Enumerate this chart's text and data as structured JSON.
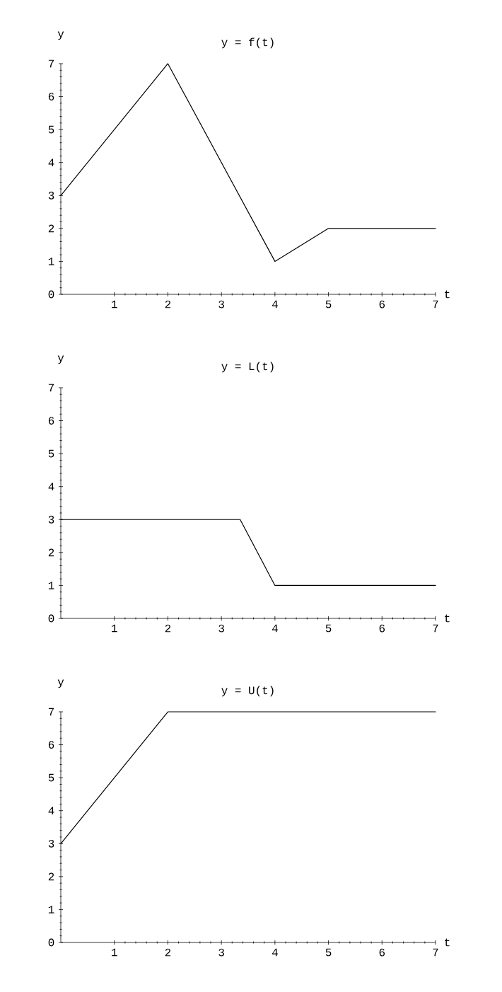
{
  "chart_data": [
    {
      "type": "line",
      "title": "y = f(t)",
      "xlabel": "t",
      "ylabel": "y",
      "x": [
        0,
        2,
        4,
        5,
        7
      ],
      "values": [
        3,
        7,
        1,
        2,
        2
      ],
      "color": "#000000",
      "xlim": [
        0,
        7
      ],
      "ylim": [
        0,
        7
      ],
      "xticks": [
        1,
        2,
        3,
        4,
        5,
        6,
        7
      ],
      "yticks": [
        0,
        1,
        2,
        3,
        4,
        5,
        6,
        7
      ]
    },
    {
      "type": "line",
      "title": "y = L(t)",
      "xlabel": "t",
      "ylabel": "y",
      "x": [
        0,
        3.35,
        4,
        7
      ],
      "values": [
        3,
        3,
        1,
        1
      ],
      "color": "#000000",
      "xlim": [
        0,
        7
      ],
      "ylim": [
        0,
        7
      ],
      "xticks": [
        1,
        2,
        3,
        4,
        5,
        6,
        7
      ],
      "yticks": [
        0,
        1,
        2,
        3,
        4,
        5,
        6,
        7
      ]
    },
    {
      "type": "line",
      "title": "y = U(t)",
      "xlabel": "t",
      "ylabel": "y",
      "x": [
        0,
        2,
        7
      ],
      "values": [
        3,
        7,
        7
      ],
      "color": "#000000",
      "xlim": [
        0,
        7
      ],
      "ylim": [
        0,
        7
      ],
      "xticks": [
        1,
        2,
        3,
        4,
        5,
        6,
        7
      ],
      "yticks": [
        0,
        1,
        2,
        3,
        4,
        5,
        6,
        7
      ]
    }
  ]
}
